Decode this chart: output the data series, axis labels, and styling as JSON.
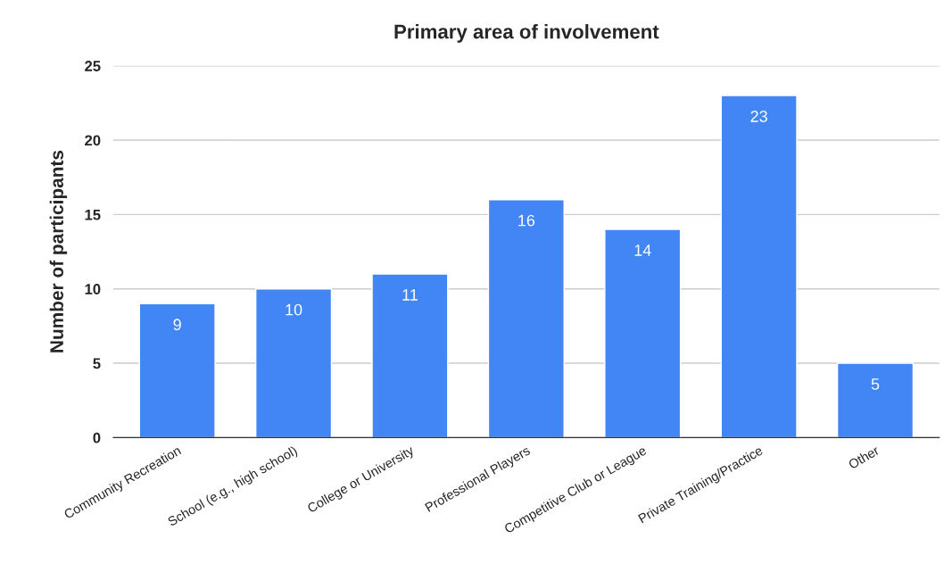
{
  "chart_data": {
    "type": "bar",
    "title": "Primary area of involvement",
    "ylabel": "Number of participants",
    "categories": [
      "Community Recreation",
      "School (e.g., high school)",
      "College or University",
      "Professional Players",
      "Competitive Club or League",
      "Private Training/Practice",
      "Other"
    ],
    "values": [
      9,
      10,
      11,
      16,
      14,
      23,
      5
    ],
    "color": "#4285f4",
    "ylim": [
      0,
      25
    ],
    "yticks": [
      0,
      5,
      10,
      15,
      20,
      25
    ],
    "grid": "y",
    "data_labels": true,
    "legend": false
  }
}
